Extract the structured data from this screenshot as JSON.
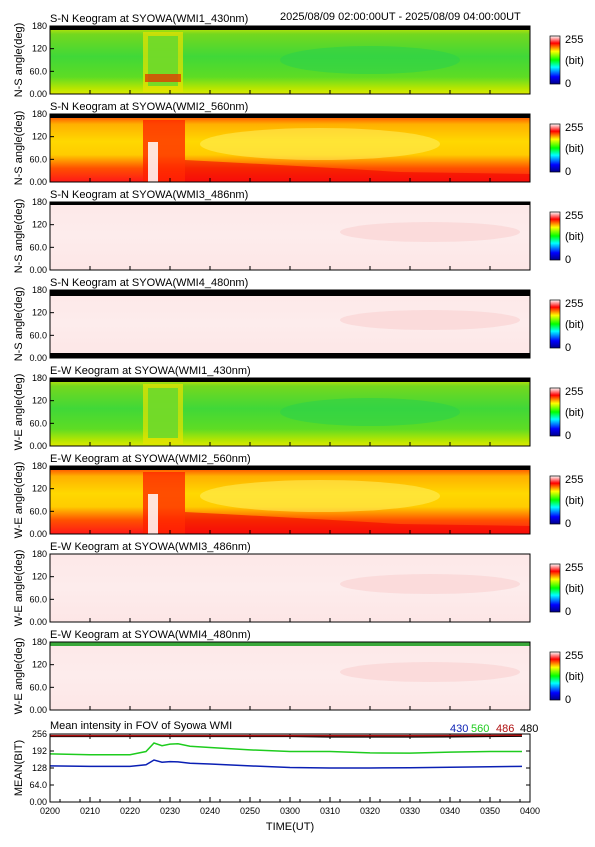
{
  "header": {
    "time_range": "2025/08/09 02:00:00UT - 2025/08/09 04:00:00UT"
  },
  "colorbar": {
    "max_label": "255",
    "unit_label": "(bit)",
    "min_label": "0"
  },
  "colors": {
    "ch430": "#0a1fb4",
    "ch560": "#1ecc1e",
    "ch486": "#b01010",
    "ch480": "#000000"
  },
  "chart_data": [
    {
      "type": "heatmap",
      "title": "S-N Keogram at SYOWA(WMI1_430nm)",
      "ylabel": "N-S angle(deg)",
      "yticks": [
        "180",
        "120",
        "60.0",
        "0.00"
      ],
      "ylim": [
        0,
        180
      ],
      "style": "green"
    },
    {
      "type": "heatmap",
      "title": "S-N Keogram at SYOWA(WMI2_560nm)",
      "ylabel": "N-S angle(deg)",
      "yticks": [
        "180",
        "120",
        "60.0",
        "0.00"
      ],
      "ylim": [
        0,
        180
      ],
      "style": "red"
    },
    {
      "type": "heatmap",
      "title": "S-N Keogram at SYOWA(WMI3_486nm)",
      "ylabel": "N-S angle(deg)",
      "yticks": [
        "180",
        "120",
        "60.0",
        "0.00"
      ],
      "ylim": [
        0,
        180
      ],
      "style": "pale"
    },
    {
      "type": "heatmap",
      "title": "S-N Keogram at SYOWA(WMI4_480nm)",
      "ylabel": "N-S angle(deg)",
      "yticks": [
        "180",
        "120",
        "60.0",
        "0.00"
      ],
      "ylim": [
        0,
        180
      ],
      "style": "pale"
    },
    {
      "type": "heatmap",
      "title": "E-W Keogram at SYOWA(WMI1_430nm)",
      "ylabel": "W-E angle(deg)",
      "yticks": [
        "180",
        "120",
        "60.0",
        "0.00"
      ],
      "ylim": [
        0,
        180
      ],
      "style": "green"
    },
    {
      "type": "heatmap",
      "title": "E-W Keogram at SYOWA(WMI2_560nm)",
      "ylabel": "W-E angle(deg)",
      "yticks": [
        "180",
        "120",
        "60.0",
        "0.00"
      ],
      "ylim": [
        0,
        180
      ],
      "style": "red"
    },
    {
      "type": "heatmap",
      "title": "E-W Keogram at SYOWA(WMI3_486nm)",
      "ylabel": "W-E angle(deg)",
      "yticks": [
        "180",
        "120",
        "60.0",
        "0.00"
      ],
      "ylim": [
        0,
        180
      ],
      "style": "pale"
    },
    {
      "type": "heatmap",
      "title": "E-W Keogram at SYOWA(WMI4_480nm)",
      "ylabel": "W-E angle(deg)",
      "yticks": [
        "180",
        "120",
        "60.0",
        "0.00"
      ],
      "ylim": [
        0,
        180
      ],
      "style": "pale"
    },
    {
      "type": "line",
      "title": "Mean intensity in FOV of Syowa WMI",
      "ylabel": "MEAN(BIT)",
      "xlabel": "TIME(UT)",
      "ylim": [
        0,
        256
      ],
      "yticks": [
        "256",
        "192",
        "128",
        "64.0",
        "0.00"
      ],
      "xlim": [
        "02:00",
        "04:00"
      ],
      "xticks": [
        "0200",
        "0210",
        "0220",
        "0230",
        "0240",
        "0250",
        "0300",
        "0310",
        "0320",
        "0330",
        "0340",
        "0350",
        "0400"
      ],
      "legend": [
        "430",
        "560",
        "486",
        "480"
      ],
      "legend_position": "top-right",
      "series": [
        {
          "name": "560",
          "color": "#1ecc1e",
          "points": [
            [
              "02:00",
              181
            ],
            [
              "02:10",
              178
            ],
            [
              "02:20",
              178
            ],
            [
              "02:24",
              190
            ],
            [
              "02:26",
              222
            ],
            [
              "02:28",
              212
            ],
            [
              "02:30",
              218
            ],
            [
              "02:32",
              219
            ],
            [
              "02:35",
              210
            ],
            [
              "02:40",
              205
            ],
            [
              "02:50",
              196
            ],
            [
              "03:00",
              190
            ],
            [
              "03:10",
              190
            ],
            [
              "03:20",
              185
            ],
            [
              "03:30",
              184
            ],
            [
              "03:40",
              188
            ],
            [
              "03:50",
              190
            ],
            [
              "03:58",
              190
            ]
          ]
        },
        {
          "name": "430",
          "color": "#0a1fb4",
          "points": [
            [
              "02:00",
              136
            ],
            [
              "02:10",
              134
            ],
            [
              "02:20",
              134
            ],
            [
              "02:24",
              140
            ],
            [
              "02:26",
              158
            ],
            [
              "02:28",
              150
            ],
            [
              "02:30",
              152
            ],
            [
              "02:32",
              151
            ],
            [
              "02:35",
              146
            ],
            [
              "02:40",
              143
            ],
            [
              "02:50",
              136
            ],
            [
              "03:00",
              130
            ],
            [
              "03:10",
              128
            ],
            [
              "03:20",
              128
            ],
            [
              "03:30",
              129
            ],
            [
              "03:40",
              131
            ],
            [
              "03:50",
              133
            ],
            [
              "03:58",
              134
            ]
          ]
        },
        {
          "name": "480",
          "color": "#000000",
          "points": [
            [
              "02:00",
              247
            ],
            [
              "02:30",
              247
            ],
            [
              "03:00",
              247
            ],
            [
              "03:10",
              245
            ],
            [
              "03:20",
              245
            ],
            [
              "03:30",
              245
            ],
            [
              "03:40",
              246
            ],
            [
              "03:50",
              247
            ],
            [
              "03:58",
              248
            ]
          ]
        },
        {
          "name": "486",
          "color": "#b01010",
          "points": [
            [
              "02:00",
              250
            ],
            [
              "02:30",
              250
            ],
            [
              "03:00",
              250
            ],
            [
              "03:30",
              250
            ],
            [
              "03:58",
              251
            ]
          ]
        }
      ]
    }
  ]
}
